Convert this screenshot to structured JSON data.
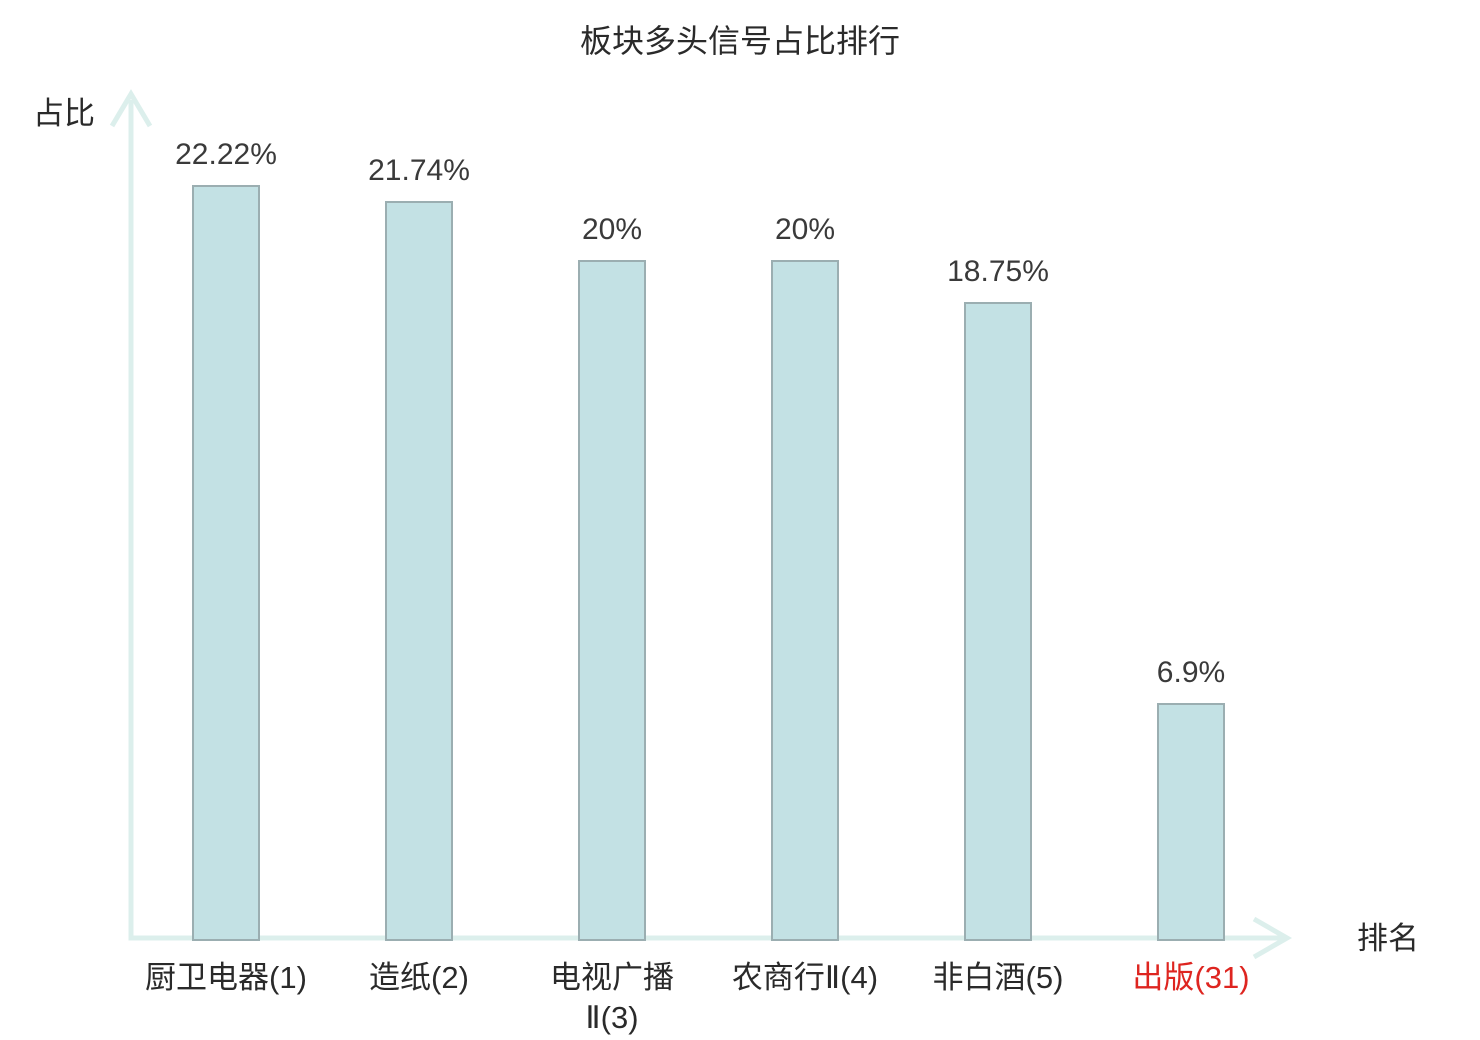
{
  "page": {
    "background": "#ffffff"
  },
  "chart_data": {
    "type": "bar",
    "title": "板块多头信号占比排行",
    "xlabel": "排名",
    "ylabel": "占比",
    "categories": [
      "厨卫电器(1)",
      "造纸(2)",
      "电视广播\nⅡ(3)",
      "农商行Ⅱ(4)",
      "非白酒(5)",
      "出版(31)"
    ],
    "values": [
      22.22,
      21.74,
      20,
      20,
      18.75,
      6.9
    ],
    "value_labels": [
      "22.22%",
      "21.74%",
      "20%",
      "20%",
      "18.75%",
      "6.9%"
    ],
    "highlight_index": 5,
    "ylim": [
      0,
      23.6
    ],
    "grid": false,
    "legend": false,
    "axis_arrows": true,
    "colors": {
      "bar_fill": "#c3e1e4",
      "bar_border": "#9baeb1",
      "axis": "#dcefec",
      "title": "#2a2a2a",
      "value_label": "#3a3a3a",
      "category_label": "#2a2a2a",
      "highlight_label": "#de2520"
    }
  }
}
